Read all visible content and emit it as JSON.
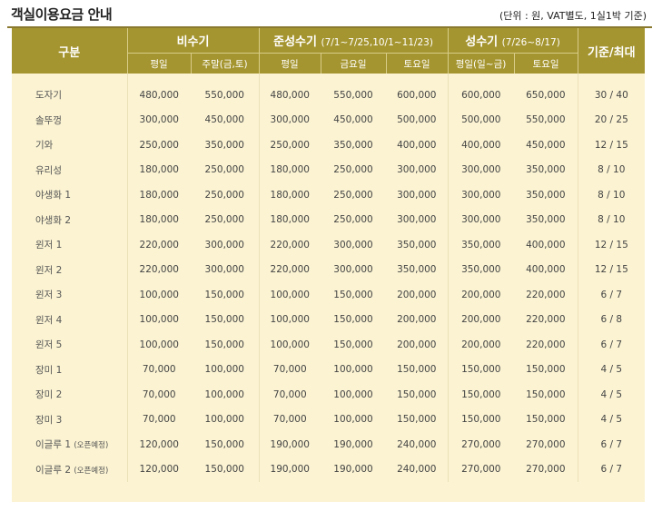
{
  "title": "객실이용요금 안내",
  "unit_note": "(단위 : 원, VAT별도, 1실1박 기준)",
  "header": {
    "category": "구분",
    "off_season": {
      "label": "비수기",
      "sub": [
        "평일",
        "주말(금,토)"
      ]
    },
    "shoulder_season": {
      "label": "준성수기",
      "range": "(7/1~7/25,10/1~11/23)",
      "sub": [
        "평일",
        "금요일",
        "토요일"
      ]
    },
    "peak_season": {
      "label": "성수기",
      "range": "(7/26~8/17)",
      "sub": [
        "평일(일~금)",
        "토요일"
      ]
    },
    "capacity": "기준/최대"
  },
  "rows": [
    {
      "name": "도자기",
      "tag": "",
      "values": [
        "480,000",
        "550,000",
        "480,000",
        "550,000",
        "600,000",
        "600,000",
        "650,000"
      ],
      "capacity": "30 / 40"
    },
    {
      "name": "솔뚜껑",
      "tag": "",
      "values": [
        "300,000",
        "450,000",
        "300,000",
        "450,000",
        "500,000",
        "500,000",
        "550,000"
      ],
      "capacity": "20 / 25"
    },
    {
      "name": "기와",
      "tag": "",
      "values": [
        "250,000",
        "350,000",
        "250,000",
        "350,000",
        "400,000",
        "400,000",
        "450,000"
      ],
      "capacity": "12 / 15"
    },
    {
      "name": "유리성",
      "tag": "",
      "values": [
        "180,000",
        "250,000",
        "180,000",
        "250,000",
        "300,000",
        "300,000",
        "350,000"
      ],
      "capacity": "8 / 10"
    },
    {
      "name": "야생화 1",
      "tag": "",
      "values": [
        "180,000",
        "250,000",
        "180,000",
        "250,000",
        "300,000",
        "300,000",
        "350,000"
      ],
      "capacity": "8 / 10"
    },
    {
      "name": "야생화 2",
      "tag": "",
      "values": [
        "180,000",
        "250,000",
        "180,000",
        "250,000",
        "300,000",
        "300,000",
        "350,000"
      ],
      "capacity": "8 / 10"
    },
    {
      "name": "윈저 1",
      "tag": "",
      "values": [
        "220,000",
        "300,000",
        "220,000",
        "300,000",
        "350,000",
        "350,000",
        "400,000"
      ],
      "capacity": "12 / 15"
    },
    {
      "name": "윈저 2",
      "tag": "",
      "values": [
        "220,000",
        "300,000",
        "220,000",
        "300,000",
        "350,000",
        "350,000",
        "400,000"
      ],
      "capacity": "12 / 15"
    },
    {
      "name": "윈저 3",
      "tag": "",
      "values": [
        "100,000",
        "150,000",
        "100,000",
        "150,000",
        "200,000",
        "200,000",
        "220,000"
      ],
      "capacity": "6 / 7"
    },
    {
      "name": "윈저 4",
      "tag": "",
      "values": [
        "100,000",
        "150,000",
        "100,000",
        "150,000",
        "200,000",
        "200,000",
        "220,000"
      ],
      "capacity": "6 / 8"
    },
    {
      "name": "윈저 5",
      "tag": "",
      "values": [
        "100,000",
        "150,000",
        "100,000",
        "150,000",
        "200,000",
        "200,000",
        "220,000"
      ],
      "capacity": "6 / 7"
    },
    {
      "name": "장미 1",
      "tag": "",
      "values": [
        "70,000",
        "100,000",
        "70,000",
        "100,000",
        "150,000",
        "150,000",
        "150,000"
      ],
      "capacity": "4 / 5"
    },
    {
      "name": "장미 2",
      "tag": "",
      "values": [
        "70,000",
        "100,000",
        "70,000",
        "100,000",
        "150,000",
        "150,000",
        "150,000"
      ],
      "capacity": "4 / 5"
    },
    {
      "name": "장미 3",
      "tag": "",
      "values": [
        "70,000",
        "100,000",
        "70,000",
        "100,000",
        "150,000",
        "150,000",
        "150,000"
      ],
      "capacity": "4 / 5"
    },
    {
      "name": "이글루 1",
      "tag": "(오픈예정)",
      "values": [
        "120,000",
        "150,000",
        "190,000",
        "190,000",
        "240,000",
        "270,000",
        "270,000"
      ],
      "capacity": "6 / 7"
    },
    {
      "name": "이글루 2",
      "tag": "(오픈예정)",
      "values": [
        "120,000",
        "150,000",
        "190,000",
        "190,000",
        "240,000",
        "270,000",
        "270,000"
      ],
      "capacity": "6 / 7"
    }
  ]
}
